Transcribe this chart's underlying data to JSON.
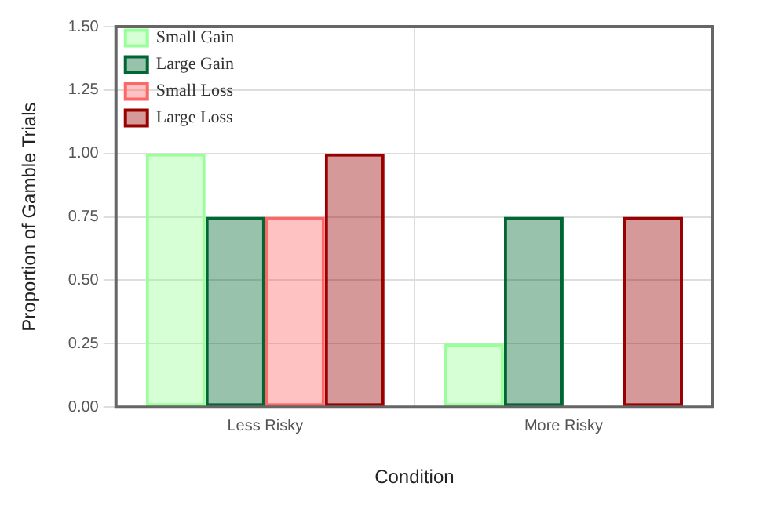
{
  "chart_data": {
    "type": "bar",
    "xlabel": "Condition",
    "ylabel": "Proportion of Gamble Trials",
    "categories": [
      "Less Risky",
      "More Risky"
    ],
    "series": [
      {
        "name": "Small Gain",
        "color": "#99ff99",
        "values": [
          1,
          0.25
        ]
      },
      {
        "name": "Large Gain",
        "color": "#006633",
        "values": [
          0.75,
          0.75
        ]
      },
      {
        "name": "Small Loss",
        "color": "#ff6666",
        "values": [
          0.75,
          0
        ]
      },
      {
        "name": "Large Loss",
        "color": "#990000",
        "values": [
          1,
          0.75
        ]
      }
    ],
    "ylim": [
      0,
      1.5
    ],
    "yticks": [
      {
        "value": 0,
        "label": "0.00"
      },
      0.25,
      {
        "value": 0.5,
        "label": "0.50"
      },
      0.75,
      {
        "value": 1,
        "label": "1.00"
      },
      1.25,
      {
        "value": 1.5,
        "label": "1.50"
      }
    ],
    "grid": true,
    "legend": "top left"
  }
}
